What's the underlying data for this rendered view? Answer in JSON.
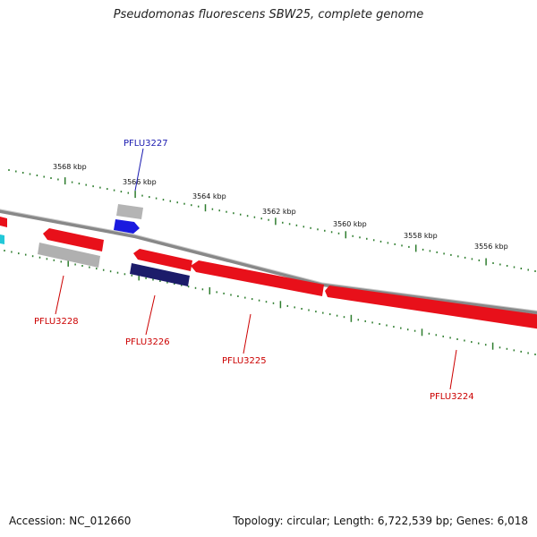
{
  "title": "Pseudomonas fluorescens SBW25, complete genome",
  "footer": {
    "accession_label": "Accession:",
    "accession": "NC_012660",
    "topology": "Topology: circular; Length: 6,722,539 bp; Genes: 6,018"
  },
  "colors": {
    "backbone": "#8a8a8a",
    "forward_gene": "#e8101a",
    "reverse_gene": "#e8101a",
    "pseudo_gene": "#b0b0b0",
    "blue_gene": "#1a1adf",
    "navy_gene": "#1c1c6a",
    "cyan_gene": "#22c8d8",
    "tick": "#2e7d2e",
    "label_red": "#cc0000",
    "label_blue": "#1a1ab0"
  },
  "kbp_labels": [
    "3568 kbp",
    "3566 kbp",
    "3564 kbp",
    "3562 kbp",
    "3560 kbp",
    "3558 kbp",
    "3556 kbp"
  ],
  "gene_labels": [
    "PFLU3227",
    "PFLU3228",
    "PFLU3226",
    "PFLU3225",
    "PFLU3224"
  ]
}
